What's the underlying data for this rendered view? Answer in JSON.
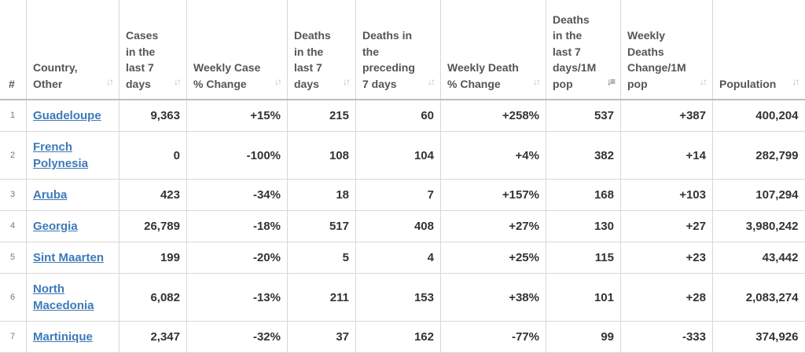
{
  "headers": {
    "index": "#",
    "country": "Country, Other",
    "cases_7d": "Cases in the last 7 days",
    "weekly_case_change": "Weekly Case % Change",
    "deaths_7d": "Deaths in the last 7 days",
    "deaths_prev_7d": "Deaths in the preceding 7 days",
    "weekly_death_change": "Weekly Death % Change",
    "deaths_7d_per_1m": "Deaths in the last 7 days/1M pop",
    "weekly_deaths_change_per_1m": "Weekly Deaths Change/1M pop",
    "population": "Population"
  },
  "rows": [
    {
      "index": "1",
      "country": "Guadeloupe",
      "cases_7d": "9,363",
      "weekly_case_change": "+15%",
      "deaths_7d": "215",
      "deaths_prev_7d": "60",
      "weekly_death_change": "+258%",
      "deaths_7d_per_1m": "537",
      "weekly_deaths_change_per_1m": "+387",
      "population": "400,204"
    },
    {
      "index": "2",
      "country": "French Polynesia",
      "cases_7d": "0",
      "weekly_case_change": "-100%",
      "deaths_7d": "108",
      "deaths_prev_7d": "104",
      "weekly_death_change": "+4%",
      "deaths_7d_per_1m": "382",
      "weekly_deaths_change_per_1m": "+14",
      "population": "282,799"
    },
    {
      "index": "3",
      "country": "Aruba",
      "cases_7d": "423",
      "weekly_case_change": "-34%",
      "deaths_7d": "18",
      "deaths_prev_7d": "7",
      "weekly_death_change": "+157%",
      "deaths_7d_per_1m": "168",
      "weekly_deaths_change_per_1m": "+103",
      "population": "107,294"
    },
    {
      "index": "4",
      "country": "Georgia",
      "cases_7d": "26,789",
      "weekly_case_change": "-18%",
      "deaths_7d": "517",
      "deaths_prev_7d": "408",
      "weekly_death_change": "+27%",
      "deaths_7d_per_1m": "130",
      "weekly_deaths_change_per_1m": "+27",
      "population": "3,980,242"
    },
    {
      "index": "5",
      "country": "Sint Maarten",
      "cases_7d": "199",
      "weekly_case_change": "-20%",
      "deaths_7d": "5",
      "deaths_prev_7d": "4",
      "weekly_death_change": "+25%",
      "deaths_7d_per_1m": "115",
      "weekly_deaths_change_per_1m": "+23",
      "population": "43,442"
    },
    {
      "index": "6",
      "country": "North Macedonia",
      "cases_7d": "6,082",
      "weekly_case_change": "-13%",
      "deaths_7d": "211",
      "deaths_prev_7d": "153",
      "weekly_death_change": "+38%",
      "deaths_7d_per_1m": "101",
      "weekly_deaths_change_per_1m": "+28",
      "population": "2,083,274"
    },
    {
      "index": "7",
      "country": "Martinique",
      "cases_7d": "2,347",
      "weekly_case_change": "-32%",
      "deaths_7d": "37",
      "deaths_prev_7d": "162",
      "weekly_death_change": "-77%",
      "deaths_7d_per_1m": "99",
      "weekly_deaths_change_per_1m": "-333",
      "population": "374,926"
    }
  ],
  "sort_icons": {
    "inactive": "sort-arrows-icon",
    "active": "sort-descending-icon"
  },
  "colors": {
    "link": "#3d7ab8",
    "text": "#333333",
    "header_text": "#555555",
    "border": "#d8d8d8"
  }
}
